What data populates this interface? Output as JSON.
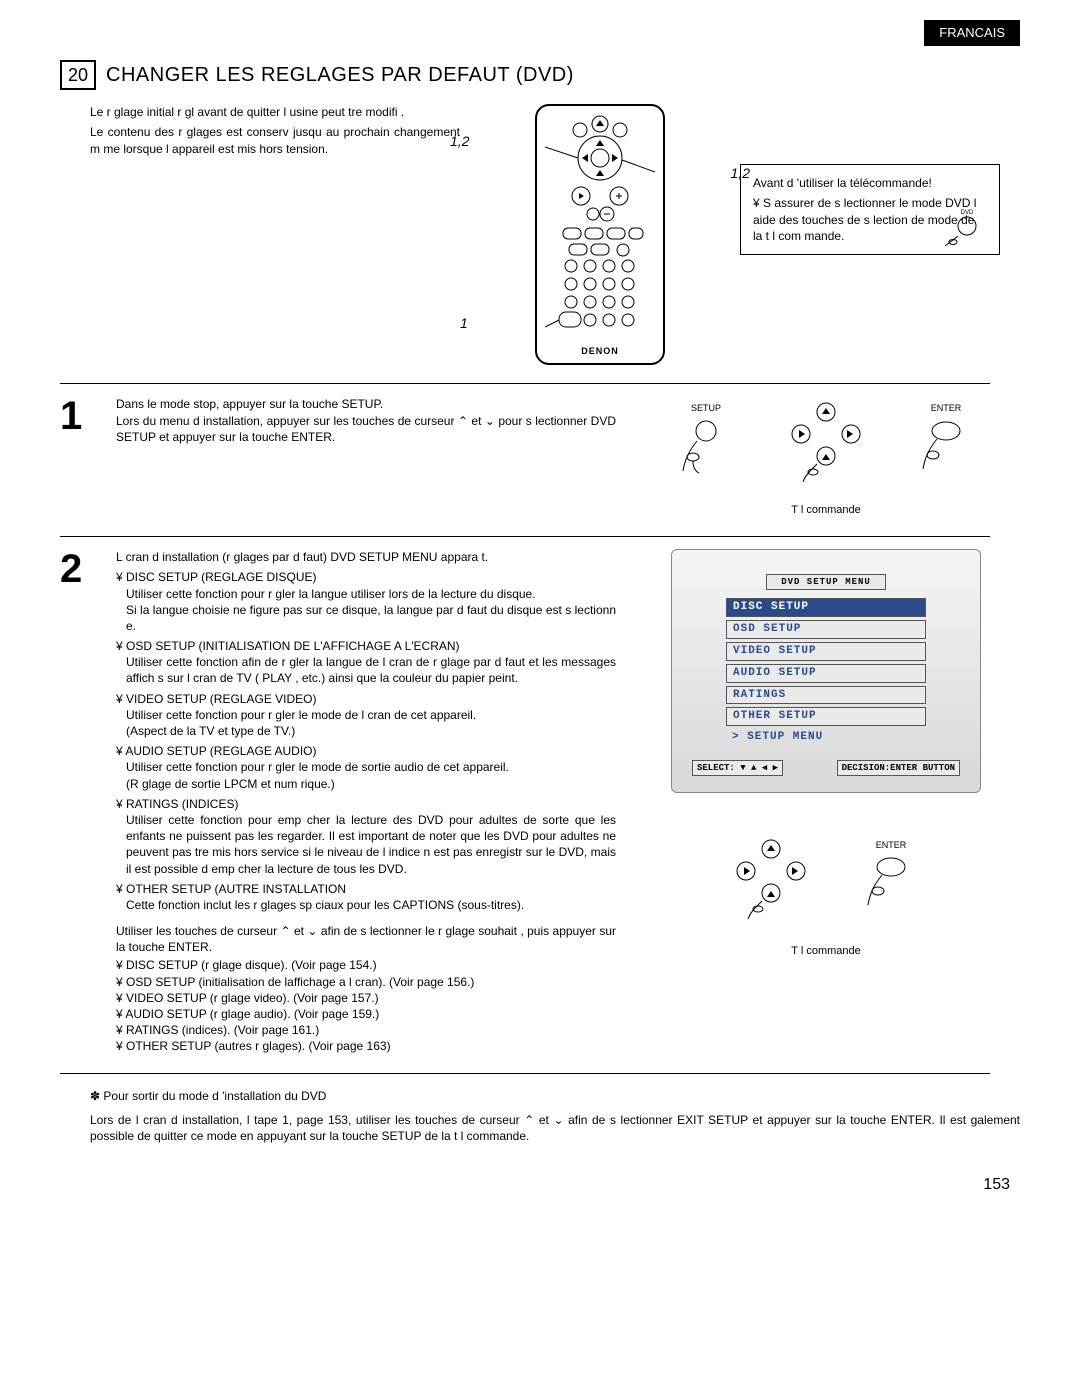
{
  "lang_tag": "FRANCAIS",
  "section_number": "20",
  "section_title": "CHANGER LES REGLAGES PAR DEFAUT (DVD)",
  "intro_p1": "Le r glage initial r gl  avant de quitter l usine peut  tre modifi .",
  "intro_p2": "Le contenu des r glages est conserv  jusqu au prochain changement m me lorsque l appareil est mis hors tension.",
  "callouts": {
    "c12a": "1,2",
    "c12b": "1,2",
    "c1": "1"
  },
  "brand": "DENON",
  "sidebox": {
    "title": "Avant d 'utiliser la télécommande!",
    "bullet": "¥  S assurer de s lectionner le mode DVD   l aide des touches de s lection de mode de la t l com mande."
  },
  "step1": {
    "num": "1",
    "text": "Dans le mode stop, appuyer sur la touche SETUP.\nLors du menu d installation, appuyer sur les touches de curseur  ⌃  et  ⌄  pour s lectionner  DVD SETUP  et appuyer sur la touche ENTER.",
    "setup_label": "SETUP",
    "enter_label": "ENTER",
    "caption": "T l commande"
  },
  "step2": {
    "num": "2",
    "intro": "L cran d installation (r glages par d faut)  DVD SETUP MENU  appara t.",
    "items": [
      {
        "head": "¥  DISC SETUP (REGLAGE DISQUE)",
        "body": "Utiliser cette fonction pour r gler la langue   utiliser lors de la lecture du disque.\nSi la langue choisie ne figure pas sur ce disque, la langue par d faut du disque est s lectionn e."
      },
      {
        "head": "¥  OSD SETUP (INITIALISATION DE L'AFFICHAGE A L'ECRAN)",
        "body": "Utiliser cette fonction afin de r gler la langue de l cran de r glage par d faut et les messages affich s sur l cran de TV ( PLAY , etc.) ainsi que la couleur du papier peint."
      },
      {
        "head": "¥  VIDEO SETUP (REGLAGE VIDEO)",
        "body": "Utiliser cette fonction pour r gler le mode de l cran de cet appareil.\n(Aspect de la TV et type de TV.)"
      },
      {
        "head": "¥   AUDIO SETUP (REGLAGE AUDIO)",
        "body": "Utiliser cette fonction pour r gler le mode de sortie audio de cet appareil.\n(R glage de sortie LPCM et num rique.)"
      },
      {
        "head": "¥  RATINGS (INDICES)",
        "body": "Utiliser cette fonction pour emp cher la lecture des DVD pour adultes de sorte que les enfants ne puissent pas les regarder. Il est important de noter que les DVD pour adultes ne peuvent pas  tre mis hors service si le niveau de l indice n est pas enregistr  sur le DVD, mais il est possible d emp cher la lecture de tous les DVD."
      },
      {
        "head": "¥  OTHER SETUP (AUTRE INSTALLATION",
        "body": "Cette fonction inclut les r glages sp ciaux pour les CAPTIONS (sous-titres)."
      }
    ],
    "after": "Utiliser les touches de curseur  ⌃  et  ⌄  afin de s lectionner le r glage souhait , puis appuyer sur la touche ENTER.",
    "refs": [
      "¥  DISC SETUP (r glage disque). (Voir page 154.)",
      "¥  OSD SETUP (initialisation de laffichage a l cran). (Voir page 156.)",
      "¥  VIDEO SETUP (r glage video). (Voir page 157.)",
      "¥  AUDIO SETUP (r glage audio). (Voir page 159.)",
      "¥  RATINGS (indices). (Voir page 161.)",
      "¥  OTHER SETUP (autres r glages). (Voir page 163)"
    ],
    "caption": "T l commande"
  },
  "menu": {
    "title": "DVD SETUP MENU",
    "items": [
      "DISC SETUP",
      "OSD SETUP",
      "VIDEO SETUP",
      "AUDIO SETUP",
      "RATINGS",
      "OTHER SETUP",
      "> SETUP MENU"
    ],
    "selected": 0,
    "footer_left": "SELECT: ▼ ▲ ◀ ▶",
    "footer_right": "DECISION:ENTER BUTTON"
  },
  "exit": {
    "star": "✽ Pour sortir du mode d  'installation du DVD",
    "body": "Lors de l cran d installation,   l tape 1, page 153, utiliser les touches de curseur  ⌃  et  ⌄  afin de s lectionner  EXIT SETUP  et appuyer sur la touche ENTER. Il est  galement possible de quitter ce mode en appuyant sur la touche SETUP de la t l  commande."
  },
  "page_num": "153",
  "colors": {
    "menu_accent": "#2a4a8a",
    "menu_bg_top": "#f5f5f5",
    "menu_bg_bot": "#d8d8d8"
  }
}
